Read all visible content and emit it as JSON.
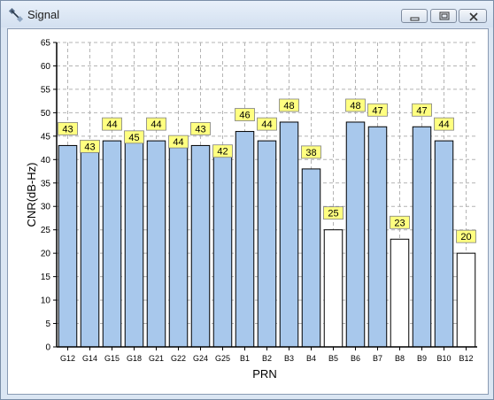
{
  "window": {
    "title": "Signal",
    "icons": {
      "app": "satellite-icon",
      "minimize": "minimize-icon",
      "maximize": "maximize-icon",
      "close": "close-icon"
    }
  },
  "chart_data": {
    "type": "bar",
    "categories": [
      "G12",
      "G14",
      "G15",
      "G18",
      "G21",
      "G22",
      "G24",
      "G25",
      "B1",
      "B2",
      "B3",
      "B4",
      "B5",
      "B6",
      "B7",
      "B8",
      "B9",
      "B10",
      "B12"
    ],
    "values": [
      43,
      43,
      44,
      45,
      44,
      44,
      43,
      42,
      46,
      44,
      48,
      38,
      25,
      48,
      47,
      23,
      47,
      44,
      20
    ],
    "in_use": [
      true,
      true,
      true,
      true,
      true,
      true,
      true,
      true,
      true,
      true,
      true,
      true,
      false,
      true,
      true,
      false,
      true,
      true,
      false
    ],
    "xlabel": "PRN",
    "ylabel": "CNR(dB-Hz)",
    "ylim": [
      0,
      65
    ],
    "yticks": [
      0,
      5,
      10,
      15,
      20,
      25,
      30,
      35,
      40,
      45,
      50,
      55,
      60,
      65
    ],
    "grid": true,
    "colors": {
      "used": "#a8c8ec",
      "unused": "#ffffff",
      "label_bg": "#ffff80",
      "edge": "#000000"
    }
  }
}
